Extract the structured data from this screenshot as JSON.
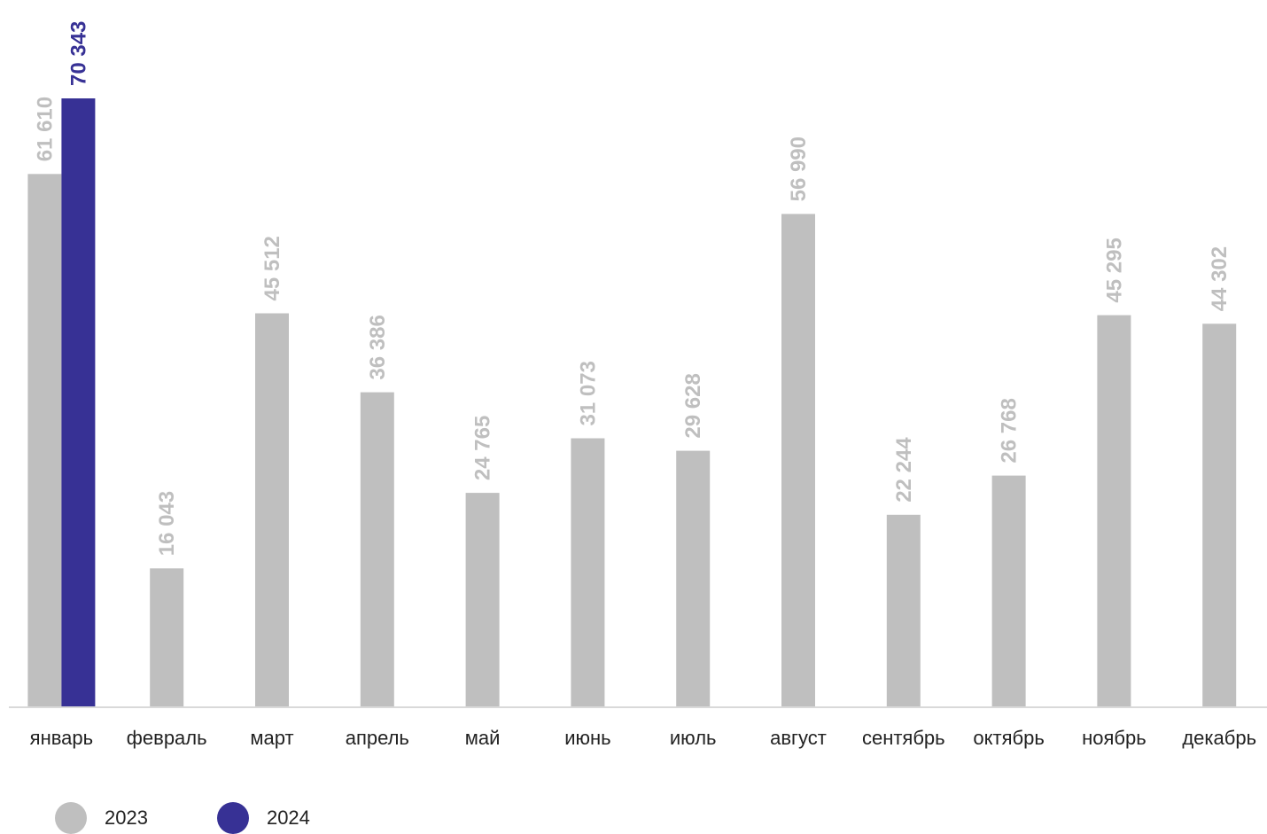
{
  "chart_data": {
    "type": "bar",
    "categories": [
      "январь",
      "февраль",
      "март",
      "апрель",
      "май",
      "июнь",
      "июль",
      "август",
      "сентябрь",
      "октябрь",
      "ноябрь",
      "декабрь"
    ],
    "series": [
      {
        "name": "2023",
        "color": "#bfbfbf",
        "values": [
          61610,
          16043,
          45512,
          36386,
          24765,
          31073,
          29628,
          56990,
          22244,
          26768,
          45295,
          44302
        ],
        "value_labels": [
          "61 610",
          "16 043",
          "45 512",
          "36 386",
          "24 765",
          "31 073",
          "29 628",
          "56 990",
          "22 244",
          "26 768",
          "45 295",
          "44 302"
        ]
      },
      {
        "name": "2024",
        "color": "#373195",
        "values": [
          70343,
          null,
          null,
          null,
          null,
          null,
          null,
          null,
          null,
          null,
          null,
          null
        ],
        "value_labels": [
          "70 343",
          "",
          "",
          "",
          "",
          "",
          "",
          "",
          "",
          "",
          "",
          ""
        ]
      }
    ],
    "title": "",
    "xlabel": "",
    "ylabel": "",
    "ylim": [
      0,
      80000
    ],
    "grid": false,
    "legend_position": "bottom-left",
    "value_labels_rotation": "vertical"
  }
}
